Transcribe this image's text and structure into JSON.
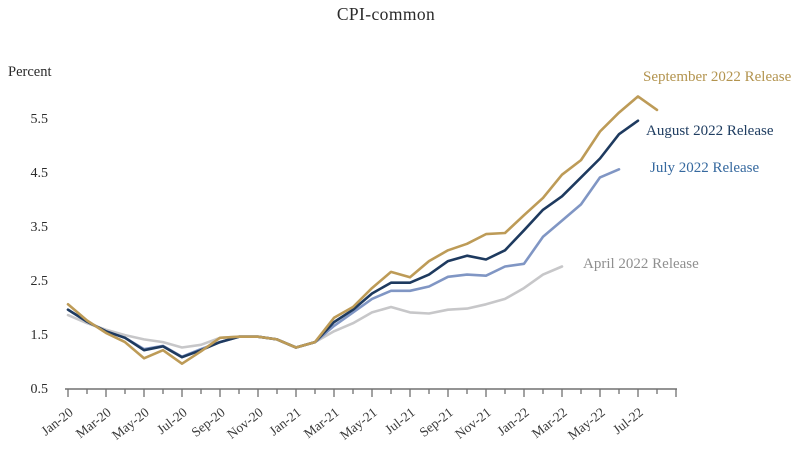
{
  "title": "CPI-common",
  "y_axis_unit": "Percent",
  "chart_data": {
    "type": "line",
    "title": "CPI-common",
    "ylabel": "Percent",
    "ylim": [
      0.5,
      6.0
    ],
    "y_ticks": [
      "0.5",
      "1.5",
      "2.5",
      "3.5",
      "4.5",
      "5.5"
    ],
    "y_tick_values": [
      0.5,
      1.5,
      2.5,
      3.5,
      4.5,
      5.5
    ],
    "grid": false,
    "legend_position": "end-of-line labels, right side",
    "x_tick_labels": [
      "Jan-20",
      "Mar-20",
      "May-20",
      "Jul-20",
      "Sep-20",
      "Nov-20",
      "Jan-21",
      "Mar-21",
      "May-21",
      "Jul-21",
      "Sep-21",
      "Nov-21",
      "Jan-22",
      "Mar-22",
      "May-22",
      "Jul-22"
    ],
    "months": [
      "Jan-20",
      "Feb-20",
      "Mar-20",
      "Apr-20",
      "May-20",
      "Jun-20",
      "Jul-20",
      "Aug-20",
      "Sep-20",
      "Oct-20",
      "Nov-20",
      "Dec-20",
      "Jan-21",
      "Feb-21",
      "Mar-21",
      "Apr-21",
      "May-21",
      "Jun-21",
      "Jul-21",
      "Aug-21",
      "Sep-21",
      "Oct-21",
      "Nov-21",
      "Dec-21",
      "Jan-22",
      "Feb-22",
      "Mar-22",
      "Apr-22",
      "May-22",
      "Jun-22",
      "Jul-22",
      "Aug-22"
    ],
    "series": [
      {
        "name": "September 2022 Release",
        "line_color": "#bd9b57",
        "label_color": "#b3944f",
        "values": [
          2.05,
          1.75,
          1.52,
          1.35,
          1.05,
          1.2,
          0.95,
          1.18,
          1.43,
          1.45,
          1.45,
          1.4,
          1.25,
          1.35,
          1.8,
          2.0,
          2.35,
          2.65,
          2.55,
          2.85,
          3.05,
          3.17,
          3.35,
          3.37,
          3.7,
          4.02,
          4.45,
          4.72,
          5.25,
          5.6,
          5.9,
          5.65
        ]
      },
      {
        "name": "August 2022 Release",
        "line_color": "#1e3a5f",
        "label_color": "#1f3d61",
        "values": [
          1.95,
          1.73,
          1.55,
          1.43,
          1.2,
          1.27,
          1.07,
          1.2,
          1.35,
          1.45,
          1.45,
          1.4,
          1.25,
          1.35,
          1.72,
          1.95,
          2.25,
          2.45,
          2.45,
          2.6,
          2.85,
          2.95,
          2.88,
          3.05,
          3.42,
          3.8,
          4.05,
          4.4,
          4.75,
          5.2,
          5.45
        ]
      },
      {
        "name": "July 2022 Release",
        "line_color": "#8096c4",
        "label_color": "#36699f",
        "values": [
          1.95,
          1.73,
          1.55,
          1.43,
          1.22,
          1.28,
          1.08,
          1.22,
          1.35,
          1.45,
          1.45,
          1.4,
          1.25,
          1.35,
          1.65,
          1.9,
          2.15,
          2.3,
          2.3,
          2.38,
          2.56,
          2.6,
          2.58,
          2.75,
          2.8,
          3.3,
          3.6,
          3.9,
          4.4,
          4.55
        ]
      },
      {
        "name": "April 2022 Release",
        "line_color": "#c7c7c9",
        "label_color": "#8f8f8f",
        "values": [
          1.85,
          1.7,
          1.58,
          1.48,
          1.4,
          1.35,
          1.25,
          1.3,
          1.43,
          1.45,
          1.45,
          1.4,
          1.25,
          1.35,
          1.55,
          1.7,
          1.9,
          2.0,
          1.9,
          1.88,
          1.95,
          1.97,
          2.05,
          2.15,
          2.35,
          2.6,
          2.75
        ]
      }
    ]
  }
}
